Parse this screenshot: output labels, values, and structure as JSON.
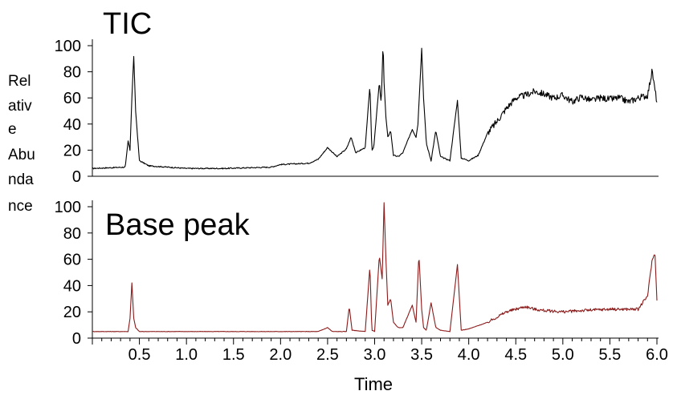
{
  "chart_data": {
    "type": "line",
    "ylabel_lines": [
      "Rel",
      "ativ",
      "e",
      "Abu",
      "nda",
      "nce"
    ],
    "xlabel": "Time",
    "x_ticks": [
      "0.5",
      "1.0",
      "1.5",
      "2.0",
      "2.5",
      "3.0",
      "3.5",
      "4.0",
      "4.5",
      "5.0",
      "5.5",
      "6.0"
    ],
    "xlim": [
      0,
      6.0
    ],
    "panels": [
      {
        "name": "TIC",
        "title": "TIC",
        "color": "#000000",
        "ylim": [
          0,
          100
        ],
        "y_ticks": [
          "100",
          "80",
          "60",
          "40",
          "20",
          "0"
        ],
        "baseline_level": 6,
        "x": [
          0.0,
          0.35,
          0.38,
          0.4,
          0.42,
          0.44,
          0.46,
          0.5,
          0.6,
          1.0,
          1.4,
          1.9,
          2.0,
          2.3,
          2.4,
          2.5,
          2.6,
          2.7,
          2.75,
          2.8,
          2.9,
          2.95,
          2.97,
          2.99,
          3.05,
          3.07,
          3.09,
          3.1,
          3.12,
          3.14,
          3.17,
          3.2,
          3.25,
          3.3,
          3.4,
          3.44,
          3.46,
          3.5,
          3.52,
          3.55,
          3.6,
          3.65,
          3.7,
          3.8,
          3.88,
          3.92,
          4.0,
          4.1,
          4.2,
          4.3,
          4.4,
          4.5,
          4.6,
          4.7,
          4.8,
          4.9,
          5.0,
          5.1,
          5.2,
          5.3,
          5.4,
          5.5,
          5.6,
          5.7,
          5.8,
          5.9,
          5.95,
          5.97,
          6.0
        ],
        "y": [
          6,
          7,
          27,
          20,
          60,
          92,
          50,
          12,
          8,
          6,
          6,
          7,
          9,
          10,
          13,
          22,
          15,
          21,
          30,
          18,
          22,
          70,
          20,
          22,
          72,
          55,
          103,
          72,
          45,
          30,
          35,
          16,
          15,
          18,
          36,
          30,
          40,
          98,
          60,
          25,
          12,
          35,
          15,
          12,
          58,
          14,
          12,
          16,
          33,
          42,
          52,
          60,
          62,
          65,
          63,
          60,
          62,
          57,
          61,
          58,
          60,
          59,
          60,
          57,
          60,
          62,
          81,
          70,
          57
        ]
      },
      {
        "name": "Base peak",
        "title": "Base peak",
        "color": "#8b1a1a",
        "ylim": [
          0,
          100
        ],
        "y_ticks": [
          "100",
          "80",
          "60",
          "40",
          "20",
          "0"
        ],
        "baseline_level": 5,
        "x": [
          0.0,
          0.38,
          0.4,
          0.42,
          0.44,
          0.46,
          0.5,
          0.6,
          1.0,
          2.0,
          2.4,
          2.5,
          2.55,
          2.7,
          2.73,
          2.76,
          2.9,
          2.95,
          2.97,
          3.0,
          3.05,
          3.08,
          3.1,
          3.12,
          3.14,
          3.17,
          3.2,
          3.25,
          3.3,
          3.4,
          3.44,
          3.47,
          3.5,
          3.52,
          3.55,
          3.6,
          3.65,
          3.7,
          3.8,
          3.88,
          3.92,
          4.0,
          4.2,
          4.4,
          4.6,
          4.7,
          4.8,
          5.0,
          5.2,
          5.5,
          5.8,
          5.9,
          5.95,
          5.98,
          6.0
        ],
        "y": [
          5,
          5,
          15,
          42,
          15,
          8,
          5,
          5,
          5,
          5,
          5,
          8,
          5,
          5,
          24,
          6,
          5,
          55,
          6,
          5,
          63,
          45,
          103,
          60,
          25,
          30,
          12,
          8,
          8,
          25,
          12,
          64,
          22,
          8,
          6,
          27,
          8,
          6,
          5,
          56,
          6,
          7,
          12,
          20,
          24,
          22,
          21,
          20,
          21,
          22,
          22,
          32,
          60,
          64,
          28
        ]
      }
    ]
  }
}
